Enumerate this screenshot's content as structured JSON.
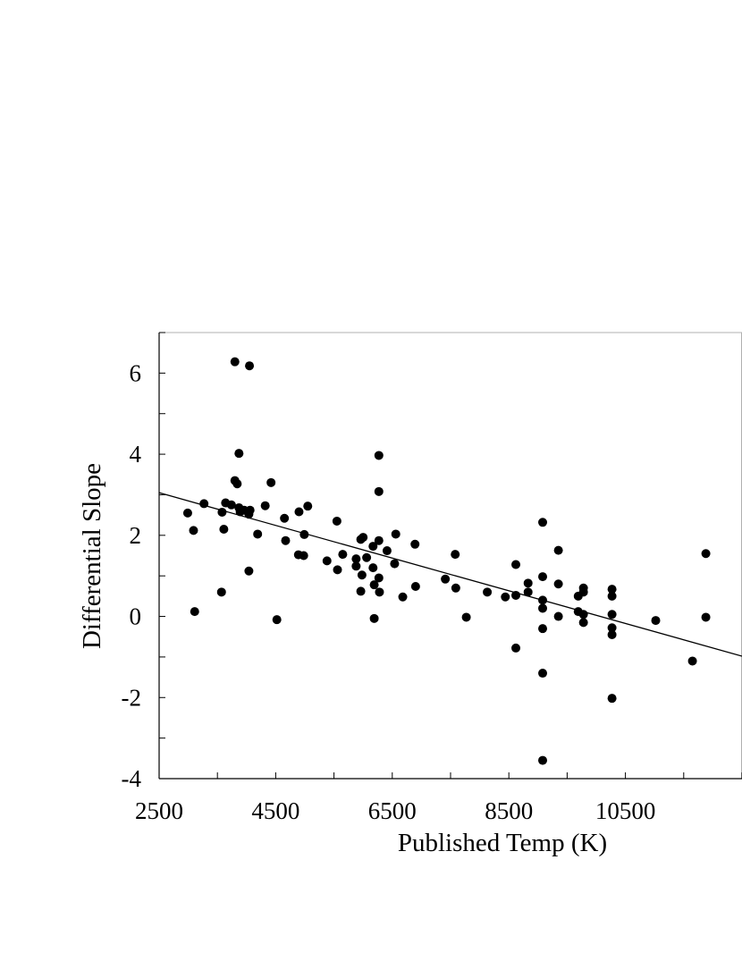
{
  "chart_data": {
    "type": "scatter",
    "title": "",
    "xlabel": "Published Temp (K)",
    "ylabel": "Differential Slope",
    "xlim": [
      2500,
      12500
    ],
    "ylim": [
      -4,
      7
    ],
    "x_ticks": [
      "2500",
      "4500",
      "6500",
      "8500",
      "10500"
    ],
    "x_tick_values": [
      2500,
      4500,
      6500,
      8500,
      10500
    ],
    "y_ticks": [
      "-4",
      "-2",
      "0",
      "2",
      "4",
      "6"
    ],
    "y_tick_values": [
      -4,
      -2,
      0,
      2,
      4,
      6
    ],
    "x_minor_step": 1000,
    "y_minor_step": 1,
    "grid": false,
    "legend": "none",
    "marker_color": "#000000",
    "trend_line": {
      "x": [
        2500,
        12500
      ],
      "y": [
        3.05,
        -0.98
      ]
    },
    "series": [
      {
        "points": [
          [
            2990,
            2.55
          ],
          [
            3090,
            2.12
          ],
          [
            3110,
            0.12
          ],
          [
            3270,
            2.78
          ],
          [
            3570,
            0.6
          ],
          [
            3580,
            2.57
          ],
          [
            3610,
            2.15
          ],
          [
            3640,
            2.8
          ],
          [
            3740,
            2.75
          ],
          [
            3800,
            3.35
          ],
          [
            3800,
            6.28
          ],
          [
            3840,
            3.27
          ],
          [
            3870,
            4.02
          ],
          [
            3870,
            2.68
          ],
          [
            3890,
            2.58
          ],
          [
            3960,
            2.62
          ],
          [
            4030,
            2.58
          ],
          [
            4040,
            2.52
          ],
          [
            4050,
            6.18
          ],
          [
            4060,
            2.62
          ],
          [
            4040,
            1.12
          ],
          [
            4190,
            2.03
          ],
          [
            4320,
            2.73
          ],
          [
            4420,
            3.3
          ],
          [
            4520,
            -0.08
          ],
          [
            4650,
            2.42
          ],
          [
            4670,
            1.87
          ],
          [
            4890,
            1.52
          ],
          [
            4900,
            2.58
          ],
          [
            4980,
            1.5
          ],
          [
            4990,
            2.02
          ],
          [
            5050,
            2.72
          ],
          [
            5380,
            1.37
          ],
          [
            5550,
            2.35
          ],
          [
            5560,
            1.15
          ],
          [
            5650,
            1.53
          ],
          [
            5880,
            1.42
          ],
          [
            5880,
            1.24
          ],
          [
            5960,
            1.9
          ],
          [
            5960,
            0.62
          ],
          [
            5980,
            1.02
          ],
          [
            6000,
            1.95
          ],
          [
            6060,
            1.45
          ],
          [
            6170,
            1.73
          ],
          [
            6170,
            1.2
          ],
          [
            6190,
            0.78
          ],
          [
            6190,
            -0.05
          ],
          [
            6270,
            3.97
          ],
          [
            6270,
            3.08
          ],
          [
            6270,
            1.87
          ],
          [
            6270,
            0.95
          ],
          [
            6280,
            0.6
          ],
          [
            6410,
            1.62
          ],
          [
            6540,
            1.3
          ],
          [
            6560,
            2.03
          ],
          [
            6680,
            0.48
          ],
          [
            6890,
            1.78
          ],
          [
            6900,
            0.74
          ],
          [
            7410,
            0.92
          ],
          [
            7580,
            1.53
          ],
          [
            7590,
            0.7
          ],
          [
            7770,
            -0.02
          ],
          [
            8130,
            0.6
          ],
          [
            8440,
            0.48
          ],
          [
            8620,
            1.28
          ],
          [
            8620,
            0.52
          ],
          [
            8620,
            -0.78
          ],
          [
            8830,
            0.82
          ],
          [
            8830,
            0.6
          ],
          [
            9080,
            2.32
          ],
          [
            9080,
            0.98
          ],
          [
            9080,
            0.4
          ],
          [
            9080,
            0.2
          ],
          [
            9080,
            -0.3
          ],
          [
            9080,
            -1.4
          ],
          [
            9080,
            -3.55
          ],
          [
            9350,
            1.63
          ],
          [
            9350,
            0.8
          ],
          [
            9350,
            0.0
          ],
          [
            9690,
            0.5
          ],
          [
            9690,
            0.12
          ],
          [
            9780,
            0.7
          ],
          [
            9780,
            0.05
          ],
          [
            9780,
            -0.15
          ],
          [
            9780,
            0.6
          ],
          [
            10270,
            0.67
          ],
          [
            10270,
            0.5
          ],
          [
            10270,
            0.05
          ],
          [
            10270,
            -0.28
          ],
          [
            10270,
            -0.45
          ],
          [
            10270,
            -2.02
          ],
          [
            11020,
            -0.1
          ],
          [
            11650,
            -1.1
          ],
          [
            11880,
            1.55
          ],
          [
            11880,
            -0.02
          ]
        ]
      }
    ]
  }
}
